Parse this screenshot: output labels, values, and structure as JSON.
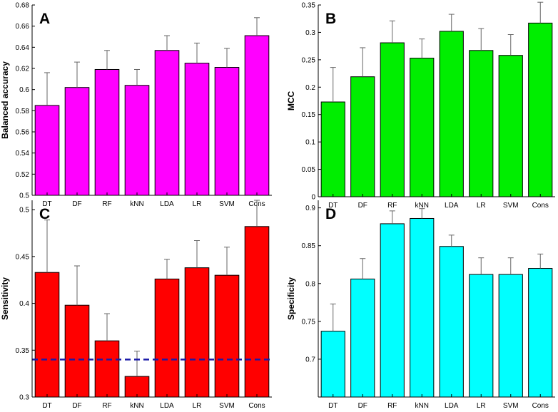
{
  "chart_data": [
    {
      "type": "bar",
      "panel": "A",
      "ylabel": "Balanced accuracy",
      "xlabel": "",
      "color": "#ff00ff",
      "categories": [
        "DT",
        "DF",
        "RF",
        "kNN",
        "LDA",
        "LR",
        "SVM",
        "Cons"
      ],
      "values": [
        0.585,
        0.602,
        0.619,
        0.604,
        0.637,
        0.625,
        0.621,
        0.651
      ],
      "errors": [
        0.031,
        0.024,
        0.018,
        0.015,
        0.014,
        0.019,
        0.018,
        0.017
      ],
      "ylim": [
        0.5,
        0.68
      ],
      "yticks": [
        0.5,
        0.52,
        0.54,
        0.56,
        0.58,
        0.6,
        0.62,
        0.64,
        0.66,
        0.68
      ],
      "ytick_labels": [
        "0.5",
        "0.52",
        "0.54",
        "0.56",
        "0.58",
        "0.6",
        "0.62",
        "0.64",
        "0.66",
        "0.68"
      ]
    },
    {
      "type": "bar",
      "panel": "B",
      "ylabel": "MCC",
      "xlabel": "",
      "color": "#00ee00",
      "categories": [
        "DT",
        "DF",
        "RF",
        "kNN",
        "LDA",
        "LR",
        "SVM",
        "Cons"
      ],
      "values": [
        0.173,
        0.219,
        0.281,
        0.253,
        0.302,
        0.267,
        0.258,
        0.317
      ],
      "errors": [
        0.063,
        0.053,
        0.04,
        0.035,
        0.031,
        0.04,
        0.038,
        0.038
      ],
      "ylim": [
        0,
        0.35
      ],
      "yticks": [
        0,
        0.05,
        0.1,
        0.15,
        0.2,
        0.25,
        0.3,
        0.35
      ],
      "ytick_labels": [
        "0",
        "0.05",
        "0.1",
        "0.15",
        "0.2",
        "0.25",
        "0.3",
        "0.35"
      ]
    },
    {
      "type": "bar",
      "panel": "C",
      "ylabel": "Sensitivity",
      "xlabel": "",
      "color": "#ff0000",
      "categories": [
        "DT",
        "DF",
        "RF",
        "kNN",
        "LDA",
        "LR",
        "SVM",
        "Cons"
      ],
      "values": [
        0.433,
        0.398,
        0.36,
        0.322,
        0.426,
        0.438,
        0.43,
        0.482
      ],
      "errors": [
        0.056,
        0.042,
        0.029,
        0.027,
        0.021,
        0.029,
        0.03,
        0.028
      ],
      "ylim": [
        0.3,
        0.51
      ],
      "yticks": [
        0.3,
        0.35,
        0.4,
        0.45,
        0.5
      ],
      "ytick_labels": [
        "0.3",
        "0.35",
        "0.4",
        "0.45",
        "0.5"
      ],
      "reference_line": {
        "value": 0.34,
        "style": "dashed",
        "color": "#1a1aa8"
      }
    },
    {
      "type": "bar",
      "panel": "D",
      "ylabel": "Specificity",
      "xlabel": "",
      "color": "#00ffff",
      "categories": [
        "DT",
        "DF",
        "RF",
        "kNN",
        "LDA",
        "LR",
        "SVM",
        "Cons"
      ],
      "values": [
        0.737,
        0.806,
        0.879,
        0.886,
        0.849,
        0.812,
        0.812,
        0.82
      ],
      "errors": [
        0.036,
        0.027,
        0.017,
        0.013,
        0.015,
        0.022,
        0.022,
        0.019
      ],
      "ylim": [
        0.65,
        0.91
      ],
      "yticks": [
        0.7,
        0.75,
        0.8,
        0.85,
        0.9
      ],
      "ytick_labels": [
        "0.7",
        "0.75",
        "0.8",
        "0.85",
        "0.9"
      ]
    }
  ]
}
